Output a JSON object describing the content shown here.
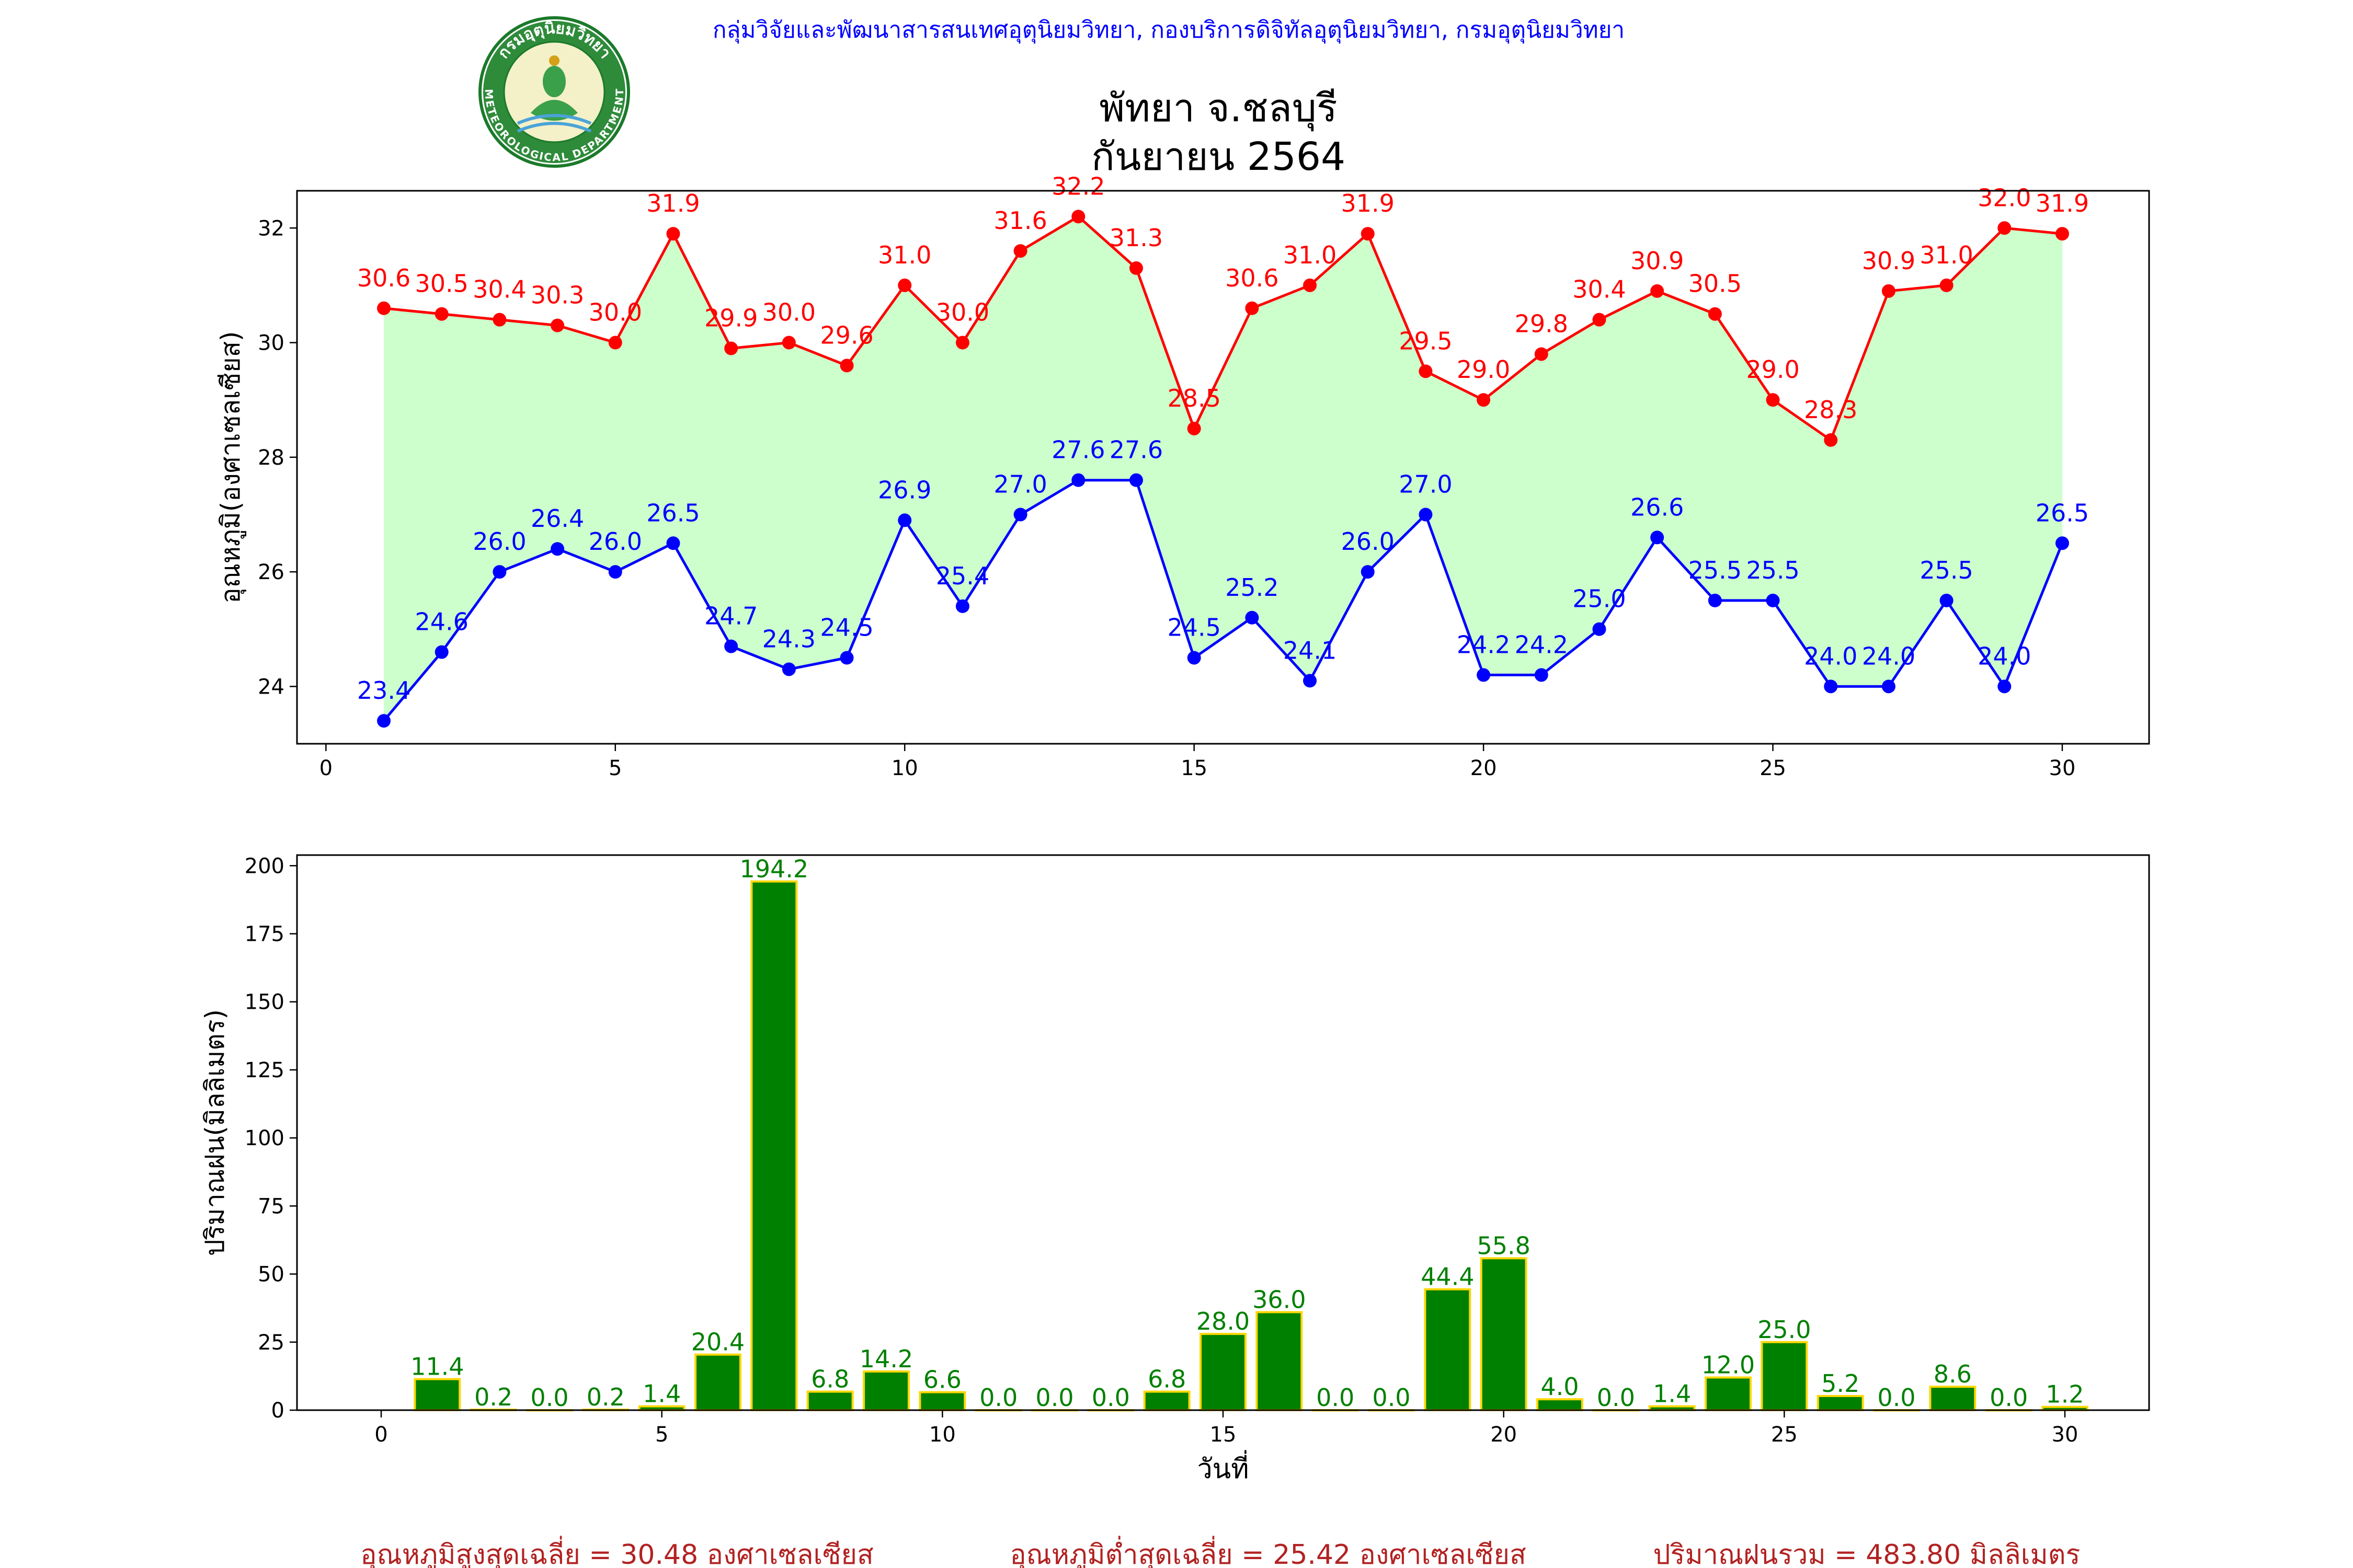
{
  "header": {
    "org_line": "กลุ่มวิจัยและพัฒนาสารสนเทศอุตุนิยมวิทยา, กองบริการดิจิทัลอุตุนิยมวิทยา, กรมอุตุนิยมวิทยา",
    "title_line1": "พัทยา จ.ชลบุรี",
    "title_line2": "กันยายน 2564",
    "logo_text_top": "กรมอุตุนิยมวิทยา",
    "logo_text_bottom": "METEOROLOGICAL DEPARTMENT"
  },
  "colors": {
    "max_temp": "#ff0000",
    "min_temp": "#0000ff",
    "fill_between": "#ccffcc",
    "rain_bar": "#008000",
    "rain_edge": "#ffd700",
    "org_text": "#0000ff",
    "summary_text": "#b22222"
  },
  "chart_data": [
    {
      "type": "line",
      "ylabel": "อุณหภูมิ(องศาเซลเซียส)",
      "xlabel": "",
      "xlim": [
        -0.5,
        31.5
      ],
      "ylim": [
        23.0,
        32.65
      ],
      "xticks": [
        0,
        5,
        10,
        15,
        20,
        25,
        30
      ],
      "yticks": [
        24,
        26,
        28,
        30,
        32
      ],
      "fill_between_series": true,
      "series": [
        {
          "name": "max",
          "x": [
            1,
            2,
            3,
            4,
            5,
            6,
            7,
            8,
            9,
            10,
            11,
            12,
            13,
            14,
            15,
            16,
            17,
            18,
            19,
            20,
            21,
            22,
            23,
            24,
            25,
            26,
            27,
            28,
            29,
            30
          ],
          "values": [
            30.6,
            30.5,
            30.4,
            30.3,
            30.0,
            31.9,
            29.9,
            30.0,
            29.6,
            31.0,
            30.0,
            31.6,
            32.2,
            31.3,
            28.5,
            30.6,
            31.0,
            31.9,
            29.5,
            29.0,
            29.8,
            30.4,
            30.9,
            30.5,
            29.0,
            28.3,
            30.9,
            31.0,
            32.0,
            31.9
          ]
        },
        {
          "name": "min",
          "x": [
            1,
            2,
            3,
            4,
            5,
            6,
            7,
            8,
            9,
            10,
            11,
            12,
            13,
            14,
            15,
            16,
            17,
            18,
            19,
            20,
            21,
            22,
            23,
            24,
            25,
            26,
            27,
            28,
            29,
            30
          ],
          "values": [
            23.4,
            24.6,
            26.0,
            26.4,
            26.0,
            26.5,
            24.7,
            24.3,
            24.5,
            26.9,
            25.4,
            27.0,
            27.6,
            27.6,
            24.5,
            25.2,
            24.1,
            26.0,
            27.0,
            24.2,
            24.2,
            25.0,
            26.6,
            25.5,
            25.5,
            24.0,
            24.0,
            25.5,
            24.0,
            26.5
          ]
        }
      ]
    },
    {
      "type": "bar",
      "ylabel": "ปริมาณฝน(มิลลิเมตร)",
      "xlabel": "วันที่",
      "xlim": [
        -1.5,
        31.5
      ],
      "ylim": [
        0,
        203.9
      ],
      "xticks": [
        0,
        5,
        10,
        15,
        20,
        25,
        30
      ],
      "yticks": [
        0,
        25,
        50,
        75,
        100,
        125,
        150,
        175,
        200
      ],
      "categories": [
        1,
        2,
        3,
        4,
        5,
        6,
        7,
        8,
        9,
        10,
        11,
        12,
        13,
        14,
        15,
        16,
        17,
        18,
        19,
        20,
        21,
        22,
        23,
        24,
        25,
        26,
        27,
        28,
        29,
        30
      ],
      "values": [
        11.4,
        0.2,
        0.0,
        0.2,
        1.4,
        20.4,
        194.2,
        6.8,
        14.2,
        6.6,
        0.0,
        0.0,
        0.0,
        6.8,
        28.0,
        36.0,
        0.0,
        0.0,
        44.4,
        55.8,
        4.0,
        0.0,
        1.4,
        12.0,
        25.0,
        5.2,
        0.0,
        8.6,
        0.0,
        1.2
      ]
    }
  ],
  "summary": {
    "avg_max": "อุณหภูมิสูงสุดเฉลี่ย = 30.48 องศาเซลเซียส",
    "avg_min": "อุณหภูมิต่ำสุดเฉลี่ย = 25.42 องศาเซลเซียส",
    "total_rain": "ปริมาณฝนรวม = 483.80 มิลลิเมตร"
  }
}
